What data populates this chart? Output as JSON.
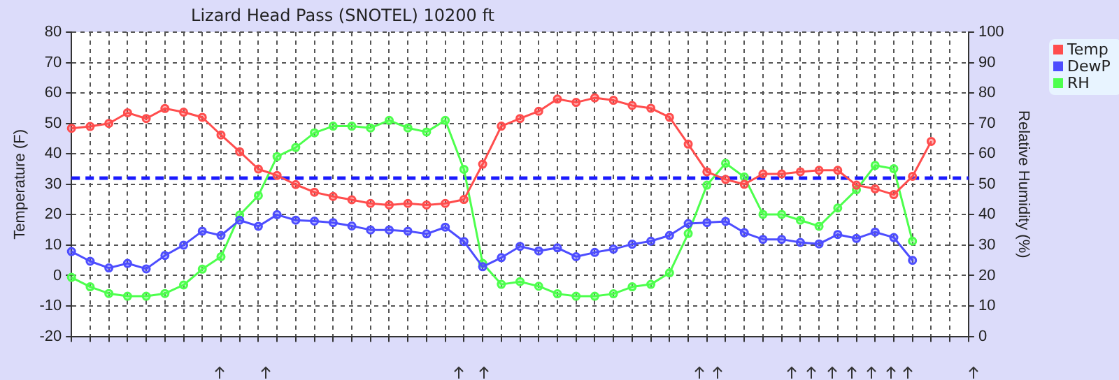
{
  "chart_data": {
    "type": "line",
    "title": "Lizard Head Pass (SNOTEL) 10200 ft",
    "ylabel": "Temperature (F)",
    "y2label": "Relative Humidity (%)",
    "categories": [
      null,
      null,
      null,
      null,
      null,
      null,
      null,
      null,
      null,
      null,
      null,
      null,
      null,
      null,
      null,
      null,
      null,
      null,
      null,
      null,
      null,
      null,
      null,
      null,
      null,
      null,
      null,
      null,
      null,
      null,
      null,
      null,
      null,
      null,
      null,
      null,
      null,
      null,
      null,
      null,
      null,
      null,
      null,
      null,
      null,
      null,
      null,
      null,
      null
    ],
    "series": [
      {
        "name": "Temp",
        "color": "#ff4d4d",
        "values": [
          48.4,
          49,
          50,
          53.5,
          51.6,
          54.9,
          53.7,
          52,
          46.2,
          40.7,
          35,
          32.9,
          29.9,
          27.4,
          26,
          24.9,
          23.7,
          23.2,
          23.7,
          23.2,
          23.7,
          25,
          36.6,
          49.1,
          51.6,
          54,
          58,
          56.9,
          58.4,
          57.6,
          55.9,
          55,
          52,
          43.2,
          34.1,
          31.6,
          30,
          33.4,
          33.4,
          34.1,
          34.6,
          34.6,
          29.7,
          28.5,
          26.6,
          32.6,
          44.1,
          null,
          null
        ]
      },
      {
        "name": "DewP",
        "color": "#4d4dff",
        "values": [
          7.9,
          4.7,
          2.5,
          4,
          2.2,
          6.6,
          10,
          14.6,
          13.2,
          18.2,
          16.2,
          20,
          18.2,
          17.9,
          17.4,
          16.3,
          15,
          15,
          14.6,
          13.7,
          15.9,
          11.2,
          2.9,
          5.9,
          9.6,
          8.1,
          9.1,
          6.2,
          7.6,
          8.7,
          10.3,
          11.3,
          13.2,
          17.1,
          17.4,
          17.8,
          14.1,
          11.9,
          11.9,
          10.9,
          10.4,
          13.5,
          12.2,
          14.3,
          12.5,
          5,
          null,
          null,
          null
        ]
      },
      {
        "name": "RH",
        "color": "#4dff4d",
        "axis": "y2",
        "values": [
          19.4,
          16.3,
          14.1,
          13.2,
          13.2,
          14.1,
          16.9,
          22.1,
          26.2,
          39.9,
          46.3,
          59.1,
          62.1,
          66.9,
          69.1,
          69.1,
          68.5,
          71,
          68.5,
          67.2,
          71,
          54.9,
          24,
          17.1,
          18,
          16.5,
          14,
          13.2,
          13.2,
          14,
          16.3,
          17.1,
          20.9,
          33.8,
          49.7,
          56.9,
          52.4,
          40.1,
          40.1,
          38.2,
          36.2,
          42.2,
          48.2,
          56.2,
          55.1,
          31.3,
          null,
          null,
          null
        ]
      }
    ],
    "ylim": [
      -20,
      80
    ],
    "yticks": [
      -20,
      -10,
      0,
      10,
      20,
      30,
      40,
      50,
      60,
      70,
      80
    ],
    "y2lim": [
      0,
      100
    ],
    "y2ticks": [
      0,
      10,
      20,
      30,
      40,
      50,
      60,
      70,
      80,
      90,
      100
    ],
    "ref_lines": [
      {
        "axis": "y",
        "value": 32,
        "color": "#1a1aff",
        "line_style": "dashed"
      }
    ],
    "grid": true,
    "legend": "top right",
    "marker": "circle",
    "line_style": "solid"
  }
}
